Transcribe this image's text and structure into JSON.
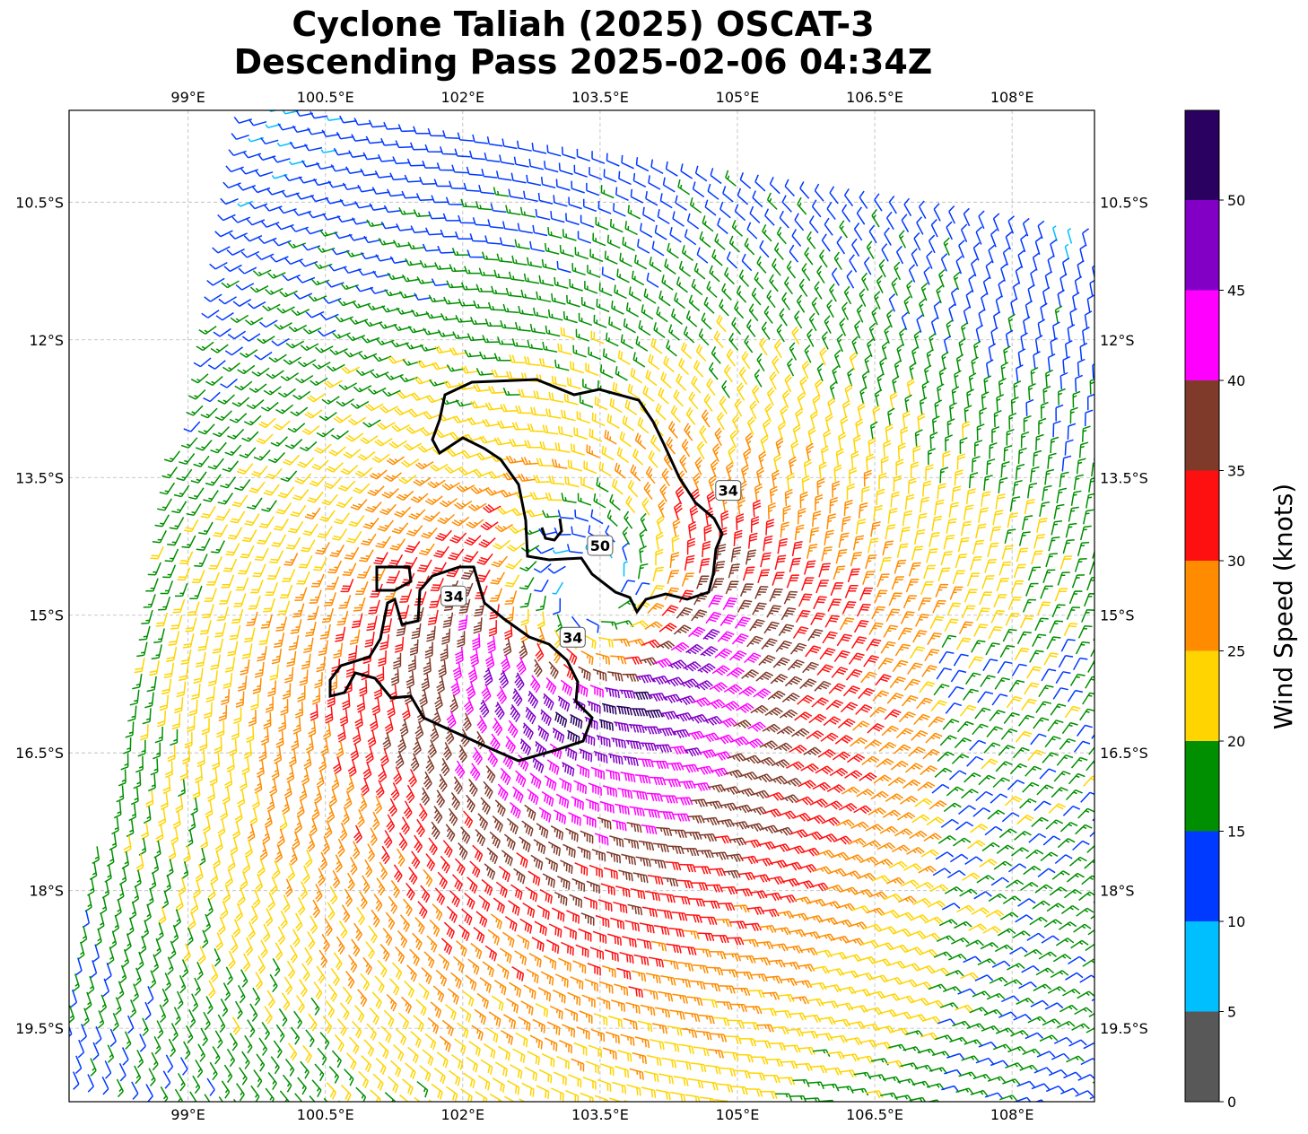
{
  "title": {
    "line1": "Cyclone Taliah (2025) OSCAT-3",
    "line2": "Descending Pass 2025-02-06 04:34Z"
  },
  "map": {
    "lon_range": [
      97.7,
      108.9
    ],
    "lat_range": [
      -20.3,
      -9.5
    ],
    "lon_ticks": [
      99.0,
      100.5,
      102.0,
      103.5,
      105.0,
      106.5,
      108.0
    ],
    "lon_tick_labels": [
      "99°E",
      "100.5°E",
      "102°E",
      "103.5°E",
      "105°E",
      "106.5°E",
      "108°E"
    ],
    "lat_ticks": [
      -10.5,
      -12.0,
      -13.5,
      -15.0,
      -16.5,
      -18.0,
      -19.5
    ],
    "lat_tick_labels": [
      "10.5°S",
      "12°S",
      "13.5°S",
      "15°S",
      "16.5°S",
      "18°S",
      "19.5°S"
    ],
    "gridlines": true,
    "storm_center": {
      "lon": 103.4,
      "lat": -14.7
    },
    "wind_field_note": "Cyclonic (clockwise, Southern Hemisphere) wind barbs; strongest winds south and east of center",
    "contours": [
      {
        "level": "34",
        "label_lon": 104.9,
        "label_lat": -13.65
      },
      {
        "level": "50",
        "label_lon": 103.5,
        "label_lat": -14.25
      },
      {
        "level": "34",
        "label_lon": 101.9,
        "label_lat": -14.8
      },
      {
        "level": "34",
        "label_lon": 103.2,
        "label_lat": -15.25
      }
    ]
  },
  "colorbar": {
    "label": "Wind Speed (knots)",
    "levels": [
      0,
      5,
      10,
      15,
      20,
      25,
      30,
      35,
      40,
      45,
      50
    ],
    "tick_labels": [
      "0",
      "5",
      "10",
      "15",
      "20",
      "25",
      "30",
      "35",
      "40",
      "45",
      "50"
    ],
    "colors": [
      "#585858",
      "#00bfff",
      "#0039ff",
      "#008f00",
      "#ffd400",
      "#ff8c00",
      "#ff1010",
      "#7f3a2a",
      "#ff00ff",
      "#8200c6",
      "#2a0060"
    ]
  }
}
